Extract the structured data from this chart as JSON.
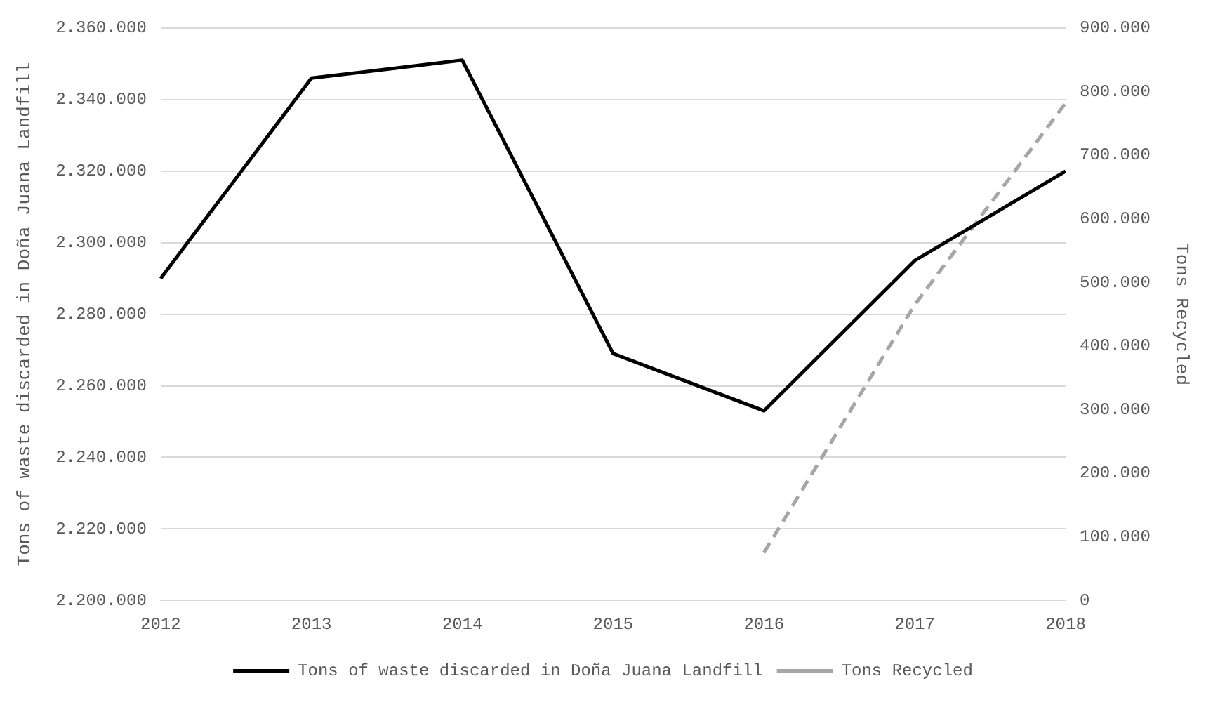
{
  "chart_data": {
    "type": "line",
    "categories": [
      "2012",
      "2013",
      "2014",
      "2015",
      "2016",
      "2017",
      "2018"
    ],
    "ylabel": "Tons of waste discarded in Doña Juana Landfill",
    "y2label": "Tons Recycled",
    "series": [
      {
        "name": "Tons of waste discarded in Doña Juana Landfill",
        "color": "#000000",
        "line_style": "solid",
        "values": [
          2290000,
          2346000,
          2351000,
          2269000,
          2253000,
          2295000,
          2320000
        ]
      },
      {
        "name": "Tons Recycled",
        "color": "#a6a6a6",
        "line_style": "dashed",
        "axis": "y2",
        "values": [
          null,
          null,
          null,
          null,
          75000,
          465000,
          782000
        ]
      }
    ],
    "ylim": [
      2200000,
      2360000
    ],
    "yticks": [
      {
        "value": 2200000,
        "label": "2.200.000"
      },
      {
        "value": 2220000,
        "label": "2.220.000"
      },
      {
        "value": 2240000,
        "label": "2.240.000"
      },
      {
        "value": 2260000,
        "label": "2.260.000"
      },
      {
        "value": 2280000,
        "label": "2.280.000"
      },
      {
        "value": 2300000,
        "label": "2.300.000"
      },
      {
        "value": 2320000,
        "label": "2.320.000"
      },
      {
        "value": 2340000,
        "label": "2.340.000"
      },
      {
        "value": 2360000,
        "label": "2.360.000"
      }
    ],
    "y2lim": [
      0,
      900000
    ],
    "y2ticks": [
      0,
      {
        "value": 100000,
        "label": "100.000"
      },
      {
        "value": 200000,
        "label": "200.000"
      },
      {
        "value": 300000,
        "label": "300.000"
      },
      {
        "value": 400000,
        "label": "400.000"
      },
      {
        "value": 500000,
        "label": "500.000"
      },
      {
        "value": 600000,
        "label": "600.000"
      },
      {
        "value": 700000,
        "label": "700.000"
      },
      {
        "value": 800000,
        "label": "800.000"
      },
      {
        "value": 900000,
        "label": "900.000"
      }
    ],
    "grid": "y",
    "legend": "bottom",
    "marker": "none"
  }
}
